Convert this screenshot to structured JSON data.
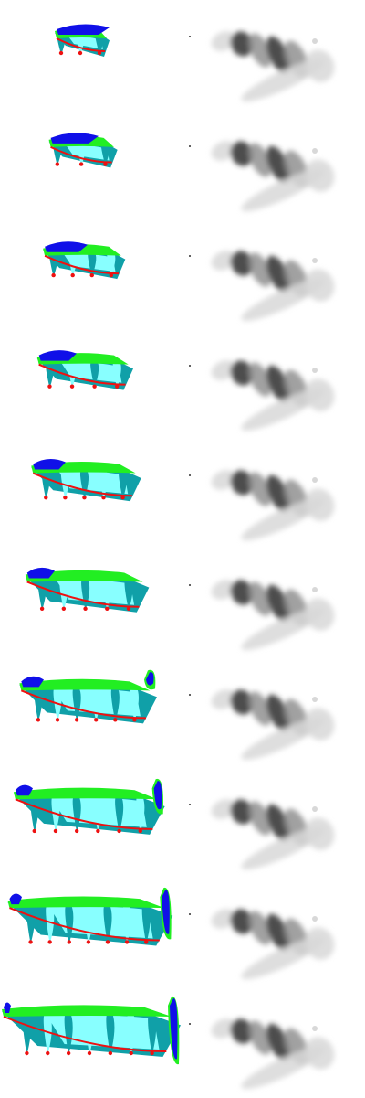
{
  "figure": {
    "rows": 10,
    "columns": 2,
    "colors": {
      "blue": "#1010e8",
      "green": "#22ee22",
      "red": "#ee1111",
      "cyan": "#88ffff",
      "teal": "#10a0a8",
      "gray_dark": "#303030",
      "gray_mid": "#909090",
      "gray_light": "#d8d8d8"
    }
  }
}
